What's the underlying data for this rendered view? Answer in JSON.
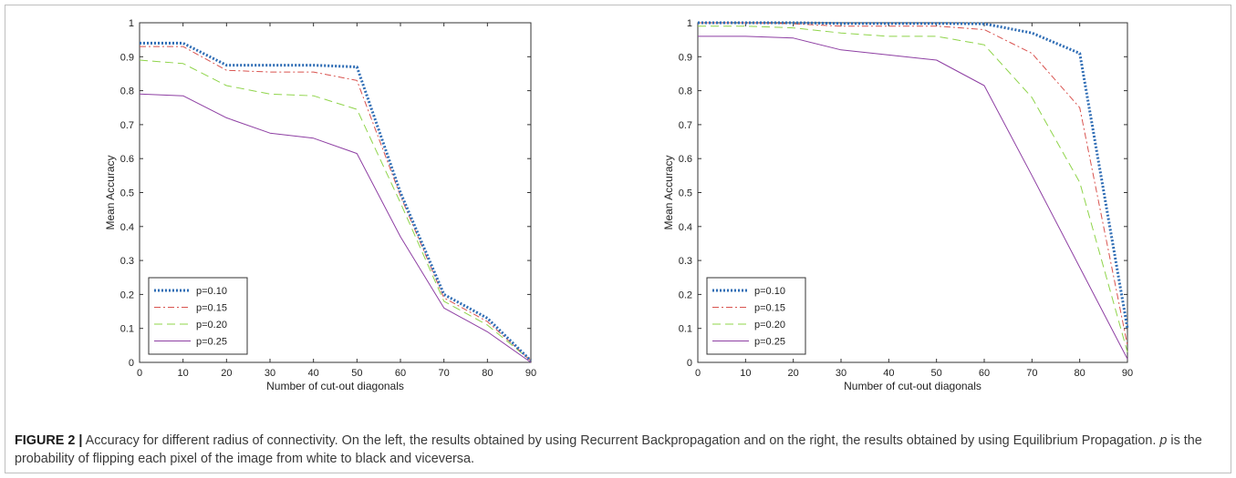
{
  "chart_data": [
    {
      "type": "line",
      "xlabel": "Number of cut-out diagonals",
      "ylabel": "Mean Accuracy",
      "xlim": [
        0,
        90
      ],
      "ylim": [
        0,
        1
      ],
      "xticks": [
        "0",
        "10",
        "20",
        "30",
        "40",
        "50",
        "60",
        "70",
        "80",
        "90"
      ],
      "yticks": [
        "0",
        "0.1",
        "0.2",
        "0.3",
        "0.4",
        "0.5",
        "0.6",
        "0.7",
        "0.8",
        "0.9",
        "1"
      ],
      "grid": false,
      "legend_position": "bottom-left",
      "x": [
        0,
        10,
        20,
        30,
        40,
        50,
        60,
        70,
        80,
        90
      ],
      "series": [
        {
          "name": "p=0.10",
          "color": "#2f6db5",
          "style": "dotted",
          "values": [
            0.94,
            0.94,
            0.875,
            0.875,
            0.875,
            0.87,
            0.5,
            0.2,
            0.13,
            0.005
          ]
        },
        {
          "name": "p=0.15",
          "color": "#d9534f",
          "style": "dashdot",
          "values": [
            0.93,
            0.93,
            0.86,
            0.855,
            0.855,
            0.83,
            0.49,
            0.19,
            0.12,
            0.005
          ]
        },
        {
          "name": "p=0.20",
          "color": "#8fd44a",
          "style": "dashed",
          "values": [
            0.89,
            0.88,
            0.815,
            0.79,
            0.785,
            0.745,
            0.47,
            0.18,
            0.11,
            0.005
          ]
        },
        {
          "name": "p=0.25",
          "color": "#8e3fa3",
          "style": "solid",
          "values": [
            0.79,
            0.785,
            0.72,
            0.675,
            0.66,
            0.615,
            0.37,
            0.16,
            0.09,
            0.0
          ]
        }
      ]
    },
    {
      "type": "line",
      "xlabel": "Number of cut-out diagonals",
      "ylabel": "Mean Accuracy",
      "xlim": [
        0,
        90
      ],
      "ylim": [
        0,
        1
      ],
      "xticks": [
        "0",
        "10",
        "20",
        "30",
        "40",
        "50",
        "60",
        "70",
        "80",
        "90"
      ],
      "yticks": [
        "0",
        "0.1",
        "0.2",
        "0.3",
        "0.4",
        "0.5",
        "0.6",
        "0.7",
        "0.8",
        "0.9",
        "1"
      ],
      "grid": false,
      "legend_position": "bottom-left",
      "x": [
        0,
        10,
        20,
        30,
        40,
        50,
        60,
        70,
        80,
        90
      ],
      "series": [
        {
          "name": "p=0.10",
          "color": "#2f6db5",
          "style": "dotted",
          "values": [
            1.0,
            1.0,
            1.0,
            0.998,
            0.998,
            0.998,
            0.997,
            0.97,
            0.91,
            0.1
          ]
        },
        {
          "name": "p=0.15",
          "color": "#d9534f",
          "style": "dashdot",
          "values": [
            1.0,
            1.0,
            0.997,
            0.99,
            0.99,
            0.99,
            0.98,
            0.91,
            0.75,
            0.05
          ]
        },
        {
          "name": "p=0.20",
          "color": "#8fd44a",
          "style": "dashed",
          "values": [
            0.99,
            0.99,
            0.985,
            0.97,
            0.96,
            0.96,
            0.935,
            0.78,
            0.53,
            0.03
          ]
        },
        {
          "name": "p=0.25",
          "color": "#8e3fa3",
          "style": "solid",
          "values": [
            0.96,
            0.96,
            0.955,
            0.92,
            0.905,
            0.89,
            0.815,
            0.55,
            0.28,
            0.01
          ]
        }
      ]
    }
  ],
  "caption": {
    "label": "FIGURE 2 |",
    "text_part1": " Accuracy for different radius of connectivity. On the left, the results obtained by using Recurrent Backpropagation and on the right, the results obtained by using Equilibrium Propagation. ",
    "symbol": "p",
    "text_part2": " is the probability of flipping each pixel of the image from white to black and viceversa."
  }
}
